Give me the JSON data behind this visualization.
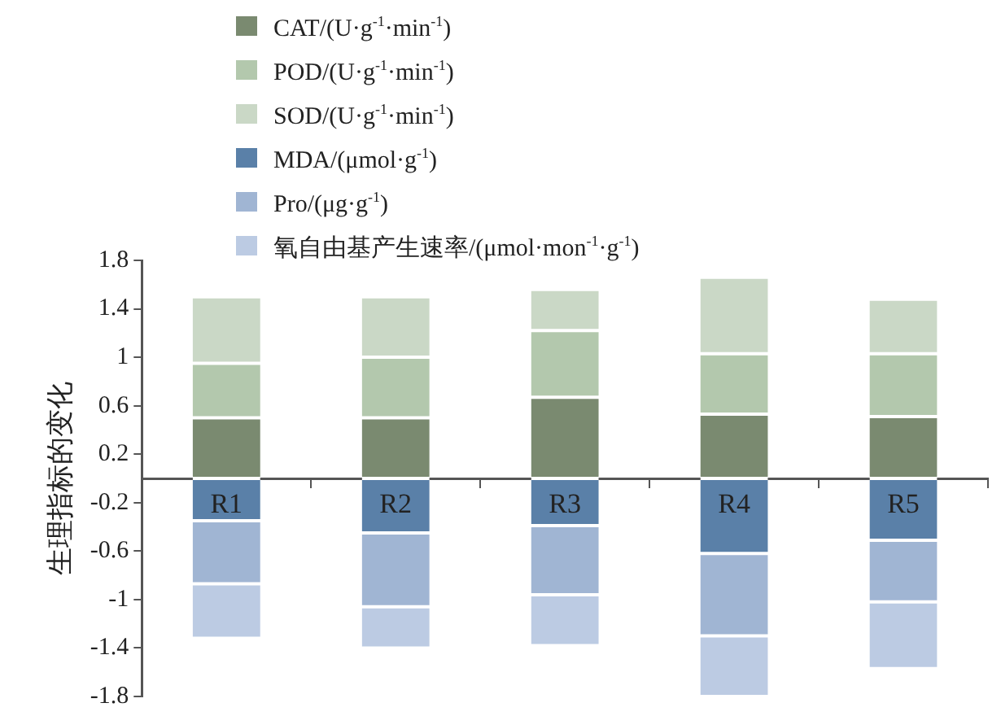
{
  "chart_data": {
    "type": "bar",
    "stacked": true,
    "ylabel": "生理指标的变化",
    "categories": [
      "R1",
      "R2",
      "R3",
      "R4",
      "R5"
    ],
    "ylim": [
      -1.8,
      1.8
    ],
    "yticks": [
      1.8,
      1.4,
      1,
      0.6,
      0.2,
      -0.2,
      -0.6,
      -1,
      -1.4,
      -1.8
    ],
    "grid": false,
    "legend": "top",
    "series": [
      {
        "name": "CAT/(U·g$^{-1}$·min$^{-1}$)",
        "color": "#7a8a70",
        "values": [
          0.5,
          0.5,
          0.67,
          0.53,
          0.51
        ]
      },
      {
        "name": "POD/(U·g$^{-1}$·min$^{-1}$)",
        "color": "#b3c8ad",
        "values": [
          0.45,
          0.5,
          0.55,
          0.5,
          0.52
        ]
      },
      {
        "name": "SOD/(U·g$^{-1}$·min$^{-1}$)",
        "color": "#cad8c6",
        "values": [
          0.55,
          0.5,
          0.34,
          0.63,
          0.45
        ]
      },
      {
        "name": "MDA/(μmol·g$^{-1}$)",
        "color": "#5a80a8",
        "values": [
          -0.35,
          -0.45,
          -0.39,
          -0.62,
          -0.51
        ]
      },
      {
        "name": "Pro/(μg·g$^{-1}$)",
        "color": "#a0b5d3",
        "values": [
          -0.52,
          -0.61,
          -0.57,
          -0.68,
          -0.51
        ]
      },
      {
        "name": "氧自由基产生速率/(μmol·mon$^{-1}$·g$^{-1}$)",
        "color": "#bccbe3",
        "values": [
          -0.45,
          -0.34,
          -0.42,
          -0.5,
          -0.55
        ]
      }
    ]
  }
}
